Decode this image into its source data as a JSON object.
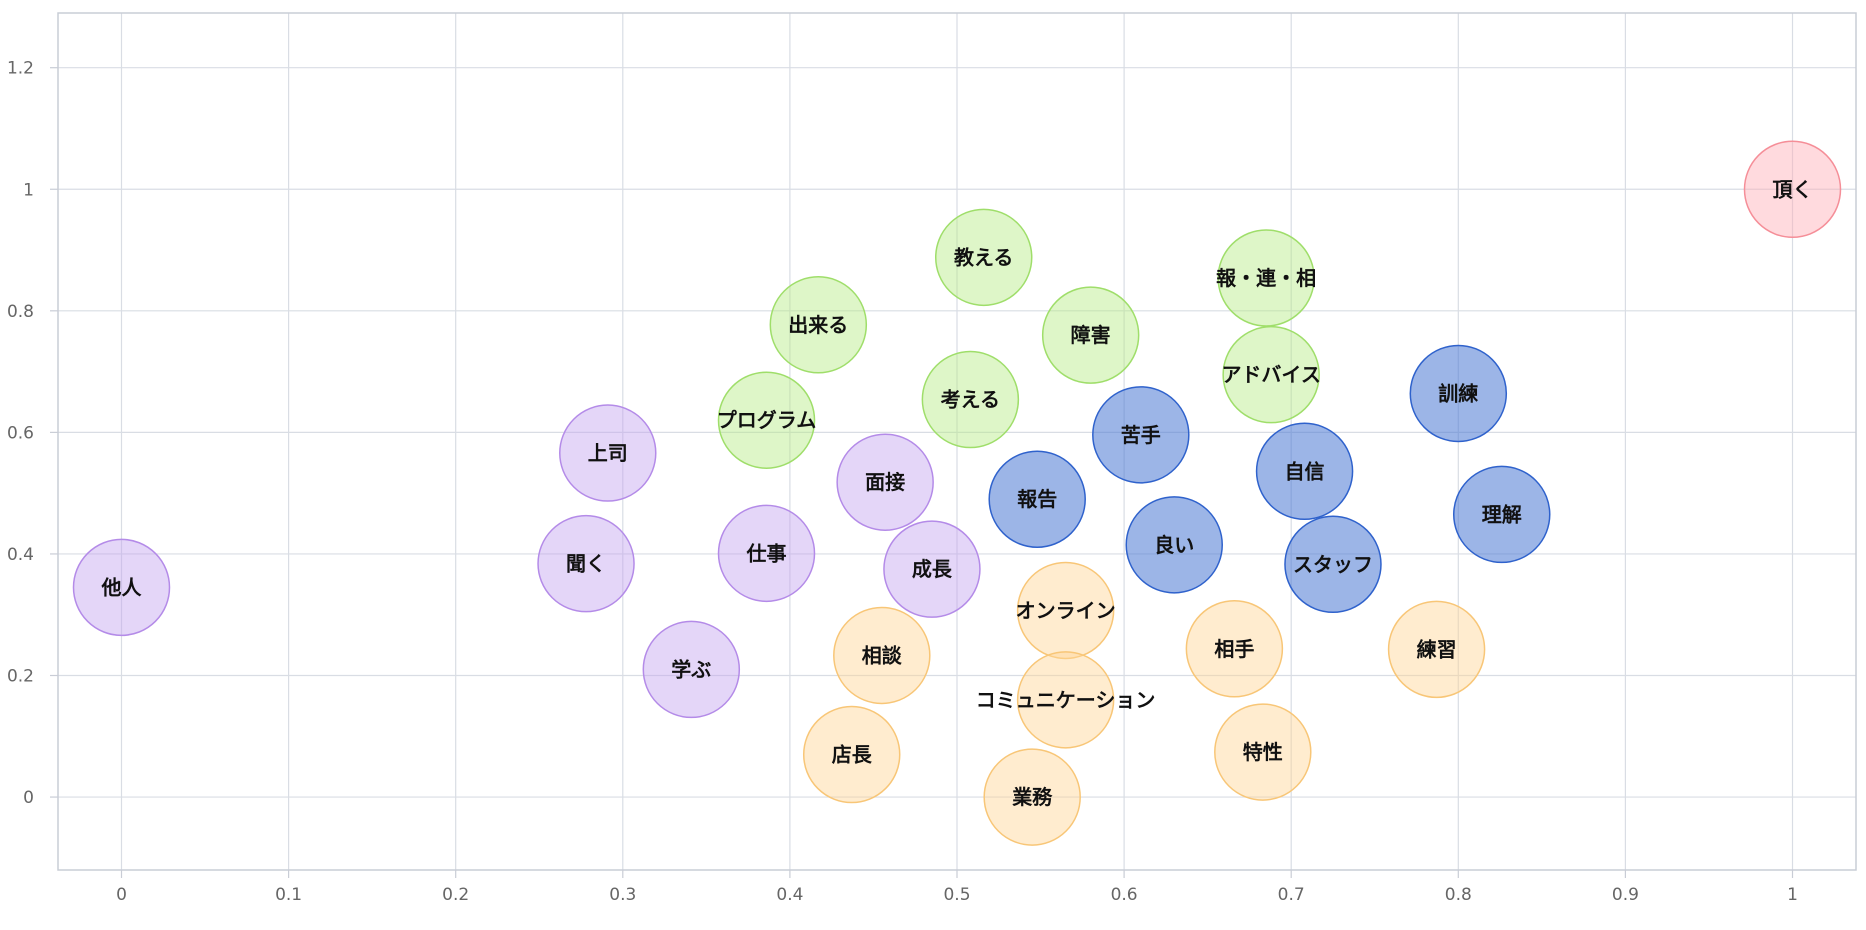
{
  "chart_data": {
    "type": "scatter",
    "subtype": "bubble",
    "title": "",
    "xlabel": "",
    "ylabel": "",
    "xlim": [
      -0.038,
      1.038
    ],
    "ylim": [
      -0.12,
      1.29
    ],
    "x_ticks": [
      "0",
      "0.1",
      "0.2",
      "0.3",
      "0.4",
      "0.5",
      "0.6",
      "0.7",
      "0.8",
      "0.9",
      "1"
    ],
    "y_ticks": [
      "0",
      "0.2",
      "0.4",
      "0.6",
      "0.8",
      "1",
      "1.2"
    ],
    "grid": true,
    "legend": "none",
    "series": [
      {
        "color": "#c3a4ef",
        "stroke": "#b48be8",
        "points": [
          {
            "label": "他人",
            "x": 0.0,
            "y": 0.345
          },
          {
            "label": "上司",
            "x": 0.291,
            "y": 0.566
          },
          {
            "label": "聞く",
            "x": 0.278,
            "y": 0.384
          },
          {
            "label": "学ぶ",
            "x": 0.341,
            "y": 0.21
          },
          {
            "label": "仕事",
            "x": 0.386,
            "y": 0.401
          },
          {
            "label": "面接",
            "x": 0.457,
            "y": 0.518
          },
          {
            "label": "成長",
            "x": 0.485,
            "y": 0.375
          }
        ]
      },
      {
        "color": "#b5ec84",
        "stroke": "#9fde6a",
        "points": [
          {
            "label": "プログラム",
            "x": 0.386,
            "y": 0.62
          },
          {
            "label": "出来る",
            "x": 0.417,
            "y": 0.777
          },
          {
            "label": "教える",
            "x": 0.516,
            "y": 0.888
          },
          {
            "label": "考える",
            "x": 0.508,
            "y": 0.654
          },
          {
            "label": "障害",
            "x": 0.58,
            "y": 0.76
          },
          {
            "label": "報・連・相",
            "x": 0.685,
            "y": 0.854
          },
          {
            "label": "アドバイス",
            "x": 0.688,
            "y": 0.695
          }
        ]
      },
      {
        "color": "#4b79d4",
        "stroke": "#2f62cc",
        "points": [
          {
            "label": "報告",
            "x": 0.548,
            "y": 0.49
          },
          {
            "label": "苦手",
            "x": 0.61,
            "y": 0.596
          },
          {
            "label": "良い",
            "x": 0.63,
            "y": 0.415
          },
          {
            "label": "自信",
            "x": 0.708,
            "y": 0.536
          },
          {
            "label": "スタッフ",
            "x": 0.725,
            "y": 0.383
          },
          {
            "label": "訓練",
            "x": 0.8,
            "y": 0.664
          },
          {
            "label": "理解",
            "x": 0.826,
            "y": 0.465
          }
        ]
      },
      {
        "color": "#ffd494",
        "stroke": "#f8c677",
        "points": [
          {
            "label": "オンライン",
            "x": 0.565,
            "y": 0.307
          },
          {
            "label": "コミュニケーション",
            "x": 0.565,
            "y": 0.16
          },
          {
            "label": "相談",
            "x": 0.455,
            "y": 0.233
          },
          {
            "label": "店長",
            "x": 0.437,
            "y": 0.07
          },
          {
            "label": "業務",
            "x": 0.545,
            "y": 0.0
          },
          {
            "label": "相手",
            "x": 0.666,
            "y": 0.244
          },
          {
            "label": "特性",
            "x": 0.683,
            "y": 0.074
          },
          {
            "label": "練習",
            "x": 0.787,
            "y": 0.243
          }
        ]
      },
      {
        "color": "#ffaeb5",
        "stroke": "#f58e98",
        "points": [
          {
            "label": "頂く",
            "x": 1.0,
            "y": 1.0
          }
        ]
      }
    ]
  }
}
